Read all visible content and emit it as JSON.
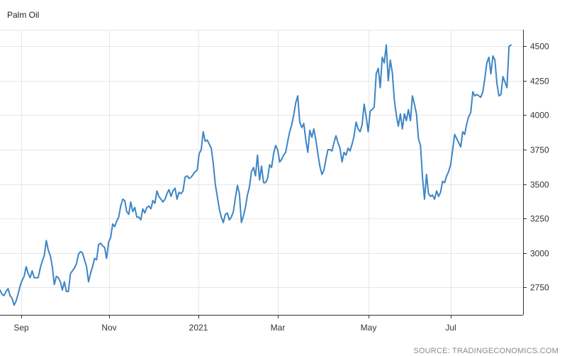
{
  "chart_data": {
    "type": "line",
    "title": "Palm Oil",
    "source": "SOURCE: TRADINGECONOMICS.COM",
    "xlabel": "",
    "ylabel": "",
    "x_ticks": [
      "Sep",
      "Nov",
      "2021",
      "Mar",
      "May",
      "Jul"
    ],
    "y_ticks": [
      2750,
      3000,
      3250,
      3500,
      3750,
      4000,
      4250,
      4500
    ],
    "ylim": [
      2550,
      4620
    ],
    "grid": true,
    "line_color": "#3d85c6",
    "series": [
      {
        "values": [
          2730,
          2700,
          2690,
          2720,
          2740,
          2690,
          2670,
          2620,
          2650,
          2700,
          2760,
          2800,
          2830,
          2900,
          2850,
          2820,
          2870,
          2820,
          2820,
          2820,
          2890,
          2940,
          2980,
          3090,
          3020,
          2980,
          2900,
          2770,
          2830,
          2820,
          2790,
          2730,
          2790,
          2720,
          2720,
          2850,
          2870,
          2890,
          2920,
          2990,
          3010,
          3000,
          2950,
          2900,
          2790,
          2850,
          2900,
          2960,
          2950,
          3060,
          3070,
          3050,
          3040,
          2960,
          3080,
          3110,
          3210,
          3190,
          3230,
          3260,
          3340,
          3390,
          3380,
          3300,
          3280,
          3370,
          3300,
          3330,
          3260,
          3260,
          3240,
          3320,
          3290,
          3330,
          3340,
          3320,
          3380,
          3360,
          3450,
          3410,
          3390,
          3370,
          3390,
          3430,
          3460,
          3410,
          3450,
          3470,
          3390,
          3440,
          3430,
          3450,
          3550,
          3560,
          3540,
          3550,
          3570,
          3590,
          3600,
          3720,
          3750,
          3880,
          3810,
          3820,
          3790,
          3760,
          3650,
          3500,
          3410,
          3320,
          3260,
          3220,
          3280,
          3290,
          3240,
          3260,
          3300,
          3400,
          3490,
          3430,
          3220,
          3270,
          3330,
          3420,
          3480,
          3590,
          3620,
          3560,
          3710,
          3530,
          3630,
          3510,
          3510,
          3540,
          3640,
          3620,
          3720,
          3780,
          3750,
          3660,
          3680,
          3710,
          3730,
          3810,
          3880,
          3930,
          4000,
          4090,
          4140,
          3950,
          3910,
          3940,
          3820,
          3730,
          3890,
          3840,
          3900,
          3820,
          3720,
          3630,
          3570,
          3600,
          3680,
          3750,
          3750,
          3740,
          3800,
          3850,
          3800,
          3760,
          3660,
          3730,
          3710,
          3760,
          3740,
          3790,
          3850,
          3950,
          3900,
          3880,
          3930,
          4080,
          3990,
          3880,
          4030,
          4040,
          4060,
          4300,
          4340,
          4200,
          4420,
          4380,
          4510,
          4250,
          4400,
          4310,
          4110,
          4000,
          3920,
          4010,
          3900,
          4010,
          3960,
          4040,
          3960,
          4140,
          4080,
          4010,
          3830,
          3780,
          3550,
          3390,
          3570,
          3430,
          3410,
          3420,
          3390,
          3450,
          3410,
          3440,
          3520,
          3510,
          3560,
          3590,
          3640,
          3750,
          3860,
          3830,
          3800,
          3770,
          3880,
          3860,
          3940,
          3990,
          4020,
          4170,
          4140,
          4150,
          4140,
          4130,
          4170,
          4270,
          4380,
          4420,
          4300,
          4430,
          4400,
          4230,
          4140,
          4150,
          4280,
          4240,
          4200,
          4500,
          4510
        ]
      }
    ]
  }
}
